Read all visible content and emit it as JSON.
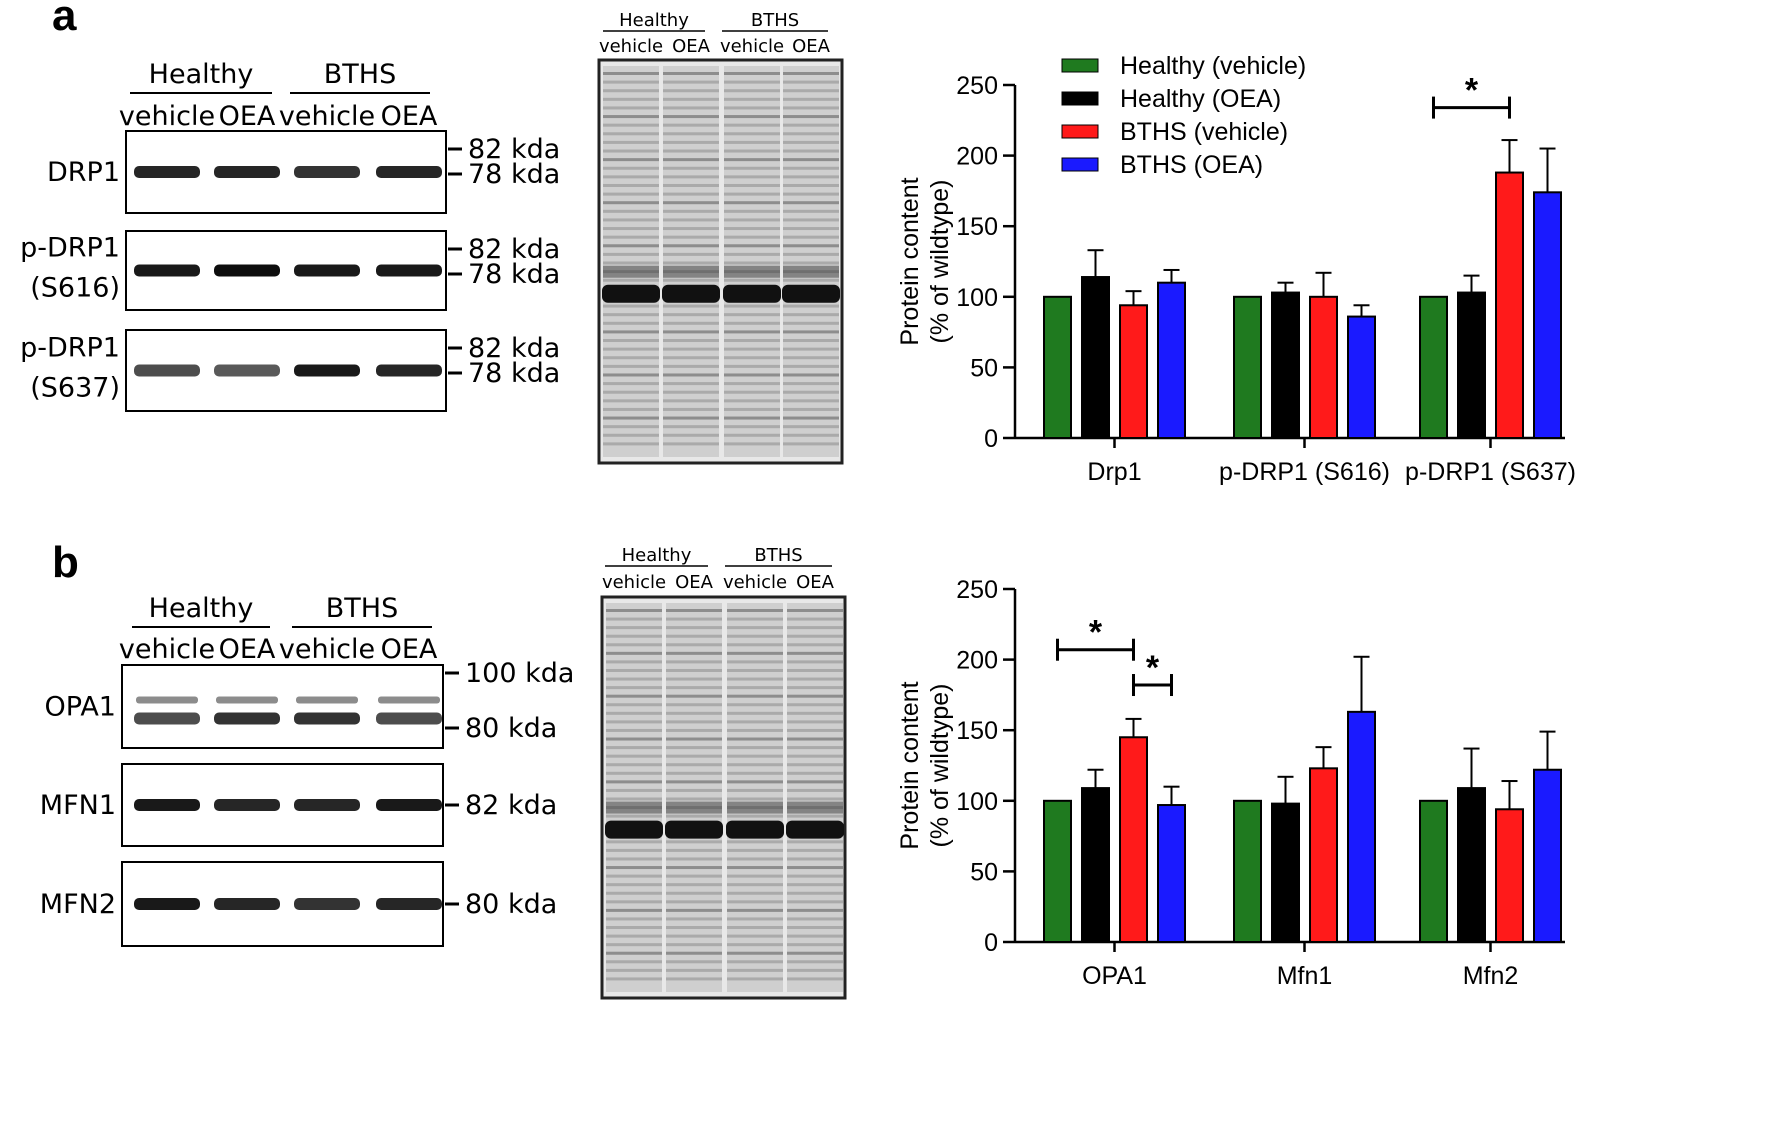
{
  "panels": [
    {
      "letter": "a",
      "blot": {
        "group_labels": [
          "Healthy",
          "BTHS"
        ],
        "lane_labels": [
          "vehicle",
          "OEA",
          "vehicle",
          "OEA"
        ],
        "rows": [
          {
            "label_lines": [
              "DRP1"
            ],
            "markers": [
              "82 kda",
              "78 kda"
            ],
            "band_intensity": [
              0.85,
              0.85,
              0.8,
              0.85
            ]
          },
          {
            "label_lines": [
              "p-DRP1",
              "(S616)"
            ],
            "markers": [
              "82 kda",
              "78 kda"
            ],
            "band_intensity": [
              0.9,
              0.95,
              0.9,
              0.9
            ]
          },
          {
            "label_lines": [
              "p-DRP1",
              "(S637)"
            ],
            "markers": [
              "82 kda",
              "78 kda"
            ],
            "band_intensity": [
              0.7,
              0.65,
              0.9,
              0.85
            ]
          }
        ]
      },
      "gel": {
        "group_labels": [
          "Healthy",
          "BTHS"
        ],
        "lane_labels": [
          "vehicle",
          "OEA",
          "vehicle",
          "OEA"
        ]
      }
    },
    {
      "letter": "b",
      "blot": {
        "group_labels": [
          "Healthy",
          "BTHS"
        ],
        "lane_labels": [
          "vehicle",
          "OEA",
          "vehicle",
          "OEA"
        ],
        "rows": [
          {
            "label_lines": [
              "OPA1"
            ],
            "markers": [
              "100 kda",
              "80 kda"
            ],
            "band_intensity": [
              0.7,
              0.8,
              0.8,
              0.7
            ]
          },
          {
            "label_lines": [
              "MFN1"
            ],
            "markers": [
              "82 kda"
            ],
            "band_intensity": [
              0.9,
              0.85,
              0.85,
              0.9
            ]
          },
          {
            "label_lines": [
              "MFN2"
            ],
            "markers": [
              "80 kda"
            ],
            "band_intensity": [
              0.9,
              0.85,
              0.8,
              0.85
            ]
          }
        ]
      },
      "gel": {
        "group_labels": [
          "Healthy",
          "BTHS"
        ],
        "lane_labels": [
          "vehicle",
          "OEA",
          "vehicle",
          "OEA"
        ]
      }
    }
  ],
  "legend": {
    "placement": "top",
    "entries": [
      "Healthy (vehicle)",
      "Healthy (OEA)",
      "BTHS (vehicle)",
      "BTHS (OEA)"
    ]
  },
  "colors": {
    "Healthy (vehicle)": "#1f7a1f",
    "Healthy (OEA)": "#000000",
    "BTHS (vehicle)": "#ff1a1a",
    "BTHS (OEA)": "#1a1aff"
  },
  "chart_data": [
    {
      "type": "bar",
      "ylabel_lines": [
        "Protein content",
        "(% of wildtype)"
      ],
      "ylim": [
        0,
        250
      ],
      "yticks": [
        0,
        50,
        100,
        150,
        200,
        250
      ],
      "categories": [
        "Drp1",
        "p-DRP1 (S616)",
        "p-DRP1 (S637)"
      ],
      "series": [
        {
          "name": "Healthy (vehicle)",
          "values": [
            100,
            100,
            100
          ],
          "errors": [
            0,
            0,
            0
          ]
        },
        {
          "name": "Healthy (OEA)",
          "values": [
            114,
            103,
            103
          ],
          "errors": [
            19,
            7,
            12
          ]
        },
        {
          "name": "BTHS (vehicle)",
          "values": [
            94,
            100,
            188
          ],
          "errors": [
            10,
            17,
            23
          ]
        },
        {
          "name": "BTHS (OEA)",
          "values": [
            110,
            86,
            174
          ],
          "errors": [
            9,
            8,
            31
          ]
        }
      ],
      "significance": [
        {
          "category": 2,
          "from_series": 0,
          "to_series": 2,
          "label": "*",
          "y": 234
        }
      ]
    },
    {
      "type": "bar",
      "ylabel_lines": [
        "Protein content",
        "(% of wildtype)"
      ],
      "ylim": [
        0,
        250
      ],
      "yticks": [
        0,
        50,
        100,
        150,
        200,
        250
      ],
      "categories": [
        "OPA1",
        "Mfn1",
        "Mfn2"
      ],
      "series": [
        {
          "name": "Healthy (vehicle)",
          "values": [
            100,
            100,
            100
          ],
          "errors": [
            0,
            0,
            0
          ]
        },
        {
          "name": "Healthy (OEA)",
          "values": [
            109,
            98,
            109
          ],
          "errors": [
            13,
            19,
            28
          ]
        },
        {
          "name": "BTHS (vehicle)",
          "values": [
            145,
            123,
            94
          ],
          "errors": [
            13,
            15,
            20
          ]
        },
        {
          "name": "BTHS (OEA)",
          "values": [
            97,
            163,
            122
          ],
          "errors": [
            13,
            39,
            27
          ]
        }
      ],
      "significance": [
        {
          "category": 0,
          "from_series": 0,
          "to_series": 2,
          "label": "*",
          "y": 207
        },
        {
          "category": 0,
          "from_series": 2,
          "to_series": 3,
          "label": "*",
          "y": 182
        }
      ]
    }
  ]
}
